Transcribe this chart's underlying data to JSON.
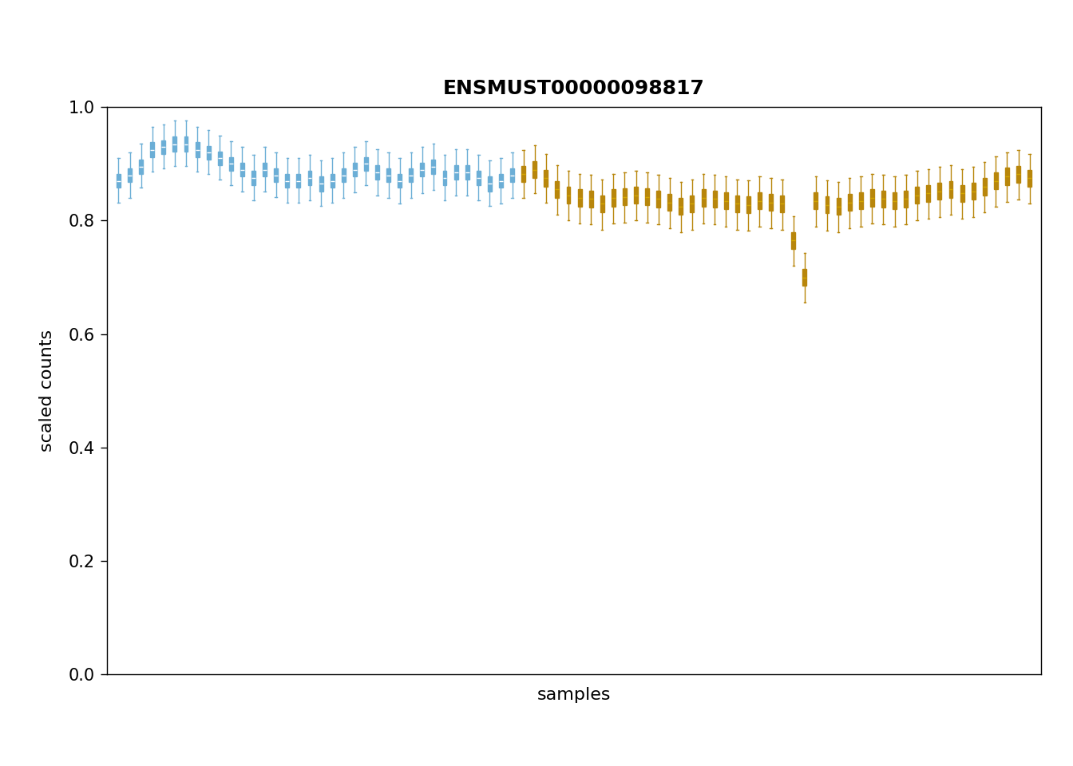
{
  "title": "ENSMUST00000098817",
  "xlabel": "samples",
  "ylabel": "scaled counts",
  "ylim": [
    0.0,
    1.0
  ],
  "yticks": [
    0.0,
    0.2,
    0.4,
    0.6,
    0.8,
    1.0
  ],
  "color_blue": "#6baed6",
  "color_gold": "#b8860b",
  "n_blue": 36,
  "n_gold": 46,
  "blue_med": [
    0.87,
    0.88,
    0.895,
    0.925,
    0.93,
    0.935,
    0.935,
    0.925,
    0.92,
    0.91,
    0.9,
    0.89,
    0.875,
    0.89,
    0.88,
    0.87,
    0.87,
    0.875,
    0.865,
    0.87,
    0.88,
    0.89,
    0.9,
    0.885,
    0.88,
    0.87,
    0.88,
    0.89,
    0.895,
    0.875,
    0.885,
    0.885,
    0.875,
    0.865,
    0.87,
    0.88
  ],
  "blue_q1": [
    0.858,
    0.868,
    0.882,
    0.912,
    0.918,
    0.922,
    0.922,
    0.912,
    0.908,
    0.898,
    0.888,
    0.878,
    0.862,
    0.878,
    0.868,
    0.858,
    0.858,
    0.862,
    0.852,
    0.858,
    0.868,
    0.878,
    0.888,
    0.872,
    0.868,
    0.858,
    0.868,
    0.878,
    0.882,
    0.862,
    0.872,
    0.872,
    0.862,
    0.852,
    0.858,
    0.868
  ],
  "blue_q3": [
    0.882,
    0.892,
    0.908,
    0.938,
    0.942,
    0.948,
    0.948,
    0.938,
    0.932,
    0.922,
    0.912,
    0.902,
    0.888,
    0.902,
    0.892,
    0.882,
    0.882,
    0.888,
    0.878,
    0.882,
    0.892,
    0.902,
    0.912,
    0.898,
    0.892,
    0.882,
    0.892,
    0.902,
    0.908,
    0.888,
    0.898,
    0.898,
    0.888,
    0.878,
    0.882,
    0.892
  ],
  "blue_whislo": [
    0.832,
    0.84,
    0.858,
    0.886,
    0.892,
    0.896,
    0.896,
    0.886,
    0.882,
    0.872,
    0.862,
    0.852,
    0.836,
    0.852,
    0.842,
    0.832,
    0.832,
    0.836,
    0.826,
    0.832,
    0.84,
    0.85,
    0.862,
    0.844,
    0.84,
    0.83,
    0.84,
    0.848,
    0.854,
    0.836,
    0.845,
    0.844,
    0.836,
    0.826,
    0.83,
    0.84
  ],
  "blue_whishi": [
    0.91,
    0.92,
    0.936,
    0.966,
    0.97,
    0.976,
    0.976,
    0.966,
    0.96,
    0.95,
    0.94,
    0.93,
    0.916,
    0.93,
    0.92,
    0.91,
    0.91,
    0.916,
    0.906,
    0.91,
    0.92,
    0.93,
    0.94,
    0.926,
    0.92,
    0.91,
    0.92,
    0.93,
    0.936,
    0.916,
    0.926,
    0.926,
    0.916,
    0.906,
    0.91,
    0.92
  ],
  "gold_med": [
    0.882,
    0.89,
    0.875,
    0.855,
    0.845,
    0.84,
    0.838,
    0.83,
    0.84,
    0.842,
    0.845,
    0.842,
    0.838,
    0.832,
    0.825,
    0.83,
    0.84,
    0.838,
    0.835,
    0.83,
    0.828,
    0.835,
    0.832,
    0.83,
    0.765,
    0.7,
    0.835,
    0.828,
    0.825,
    0.832,
    0.835,
    0.84,
    0.838,
    0.835,
    0.838,
    0.845,
    0.848,
    0.852,
    0.855,
    0.848,
    0.852,
    0.86,
    0.87,
    0.878,
    0.882,
    0.875
  ],
  "gold_q1": [
    0.868,
    0.875,
    0.86,
    0.84,
    0.83,
    0.825,
    0.823,
    0.815,
    0.825,
    0.827,
    0.83,
    0.827,
    0.823,
    0.817,
    0.81,
    0.815,
    0.825,
    0.823,
    0.82,
    0.815,
    0.813,
    0.82,
    0.817,
    0.815,
    0.75,
    0.685,
    0.82,
    0.813,
    0.81,
    0.817,
    0.82,
    0.825,
    0.823,
    0.82,
    0.823,
    0.83,
    0.833,
    0.837,
    0.84,
    0.833,
    0.837,
    0.845,
    0.855,
    0.863,
    0.867,
    0.86
  ],
  "gold_q3": [
    0.896,
    0.905,
    0.89,
    0.87,
    0.86,
    0.855,
    0.853,
    0.845,
    0.855,
    0.857,
    0.86,
    0.857,
    0.853,
    0.847,
    0.84,
    0.845,
    0.855,
    0.853,
    0.85,
    0.845,
    0.843,
    0.85,
    0.847,
    0.845,
    0.78,
    0.715,
    0.85,
    0.843,
    0.84,
    0.847,
    0.85,
    0.855,
    0.853,
    0.85,
    0.853,
    0.86,
    0.863,
    0.867,
    0.87,
    0.863,
    0.867,
    0.875,
    0.885,
    0.893,
    0.897,
    0.89
  ],
  "gold_whislo": [
    0.84,
    0.848,
    0.832,
    0.81,
    0.8,
    0.795,
    0.793,
    0.784,
    0.795,
    0.797,
    0.8,
    0.797,
    0.793,
    0.787,
    0.78,
    0.784,
    0.795,
    0.793,
    0.79,
    0.784,
    0.783,
    0.79,
    0.787,
    0.784,
    0.72,
    0.655,
    0.79,
    0.783,
    0.78,
    0.787,
    0.79,
    0.795,
    0.793,
    0.79,
    0.793,
    0.8,
    0.803,
    0.807,
    0.81,
    0.803,
    0.807,
    0.815,
    0.825,
    0.833,
    0.837,
    0.83
  ],
  "gold_whishi": [
    0.924,
    0.933,
    0.918,
    0.898,
    0.888,
    0.883,
    0.881,
    0.873,
    0.883,
    0.885,
    0.888,
    0.885,
    0.881,
    0.875,
    0.868,
    0.873,
    0.883,
    0.881,
    0.878,
    0.873,
    0.871,
    0.878,
    0.875,
    0.873,
    0.808,
    0.743,
    0.878,
    0.871,
    0.868,
    0.875,
    0.878,
    0.883,
    0.881,
    0.878,
    0.881,
    0.888,
    0.891,
    0.895,
    0.898,
    0.891,
    0.895,
    0.903,
    0.913,
    0.921,
    0.925,
    0.918
  ]
}
